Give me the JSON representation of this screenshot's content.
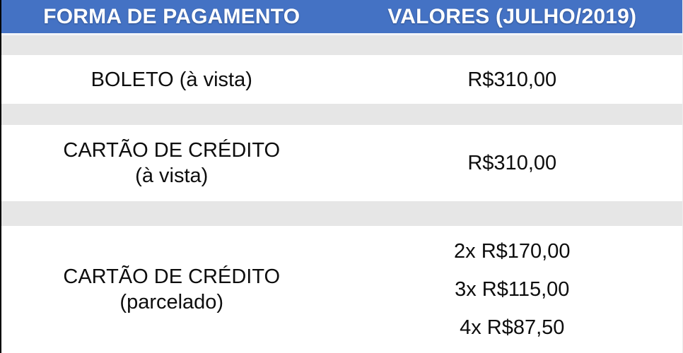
{
  "chart_data": {
    "type": "table",
    "columns": [
      "FORMA DE PAGAMENTO",
      "VALORES (JULHO/2019)"
    ],
    "rows": [
      {
        "forma_de_pagamento": "BOLETO (à vista)",
        "valores": [
          "R$310,00"
        ]
      },
      {
        "forma_de_pagamento": "CARTÃO DE CRÉDITO (à vista)",
        "valores": [
          "R$310,00"
        ]
      },
      {
        "forma_de_pagamento": "CARTÃO DE CRÉDITO (parcelado)",
        "valores": [
          "2x R$170,00",
          "3x R$115,00",
          "4x R$87,50"
        ]
      }
    ]
  },
  "display": {
    "header": {
      "payment_method": "FORMA DE PAGAMENTO",
      "values": "VALORES (JULHO/2019)"
    },
    "rows": [
      {
        "line1": "BOLETO (à vista)",
        "values": [
          "R$310,00"
        ]
      },
      {
        "line1": "CARTÃO DE CRÉDITO",
        "line2": "(à vista)",
        "values": [
          "R$310,00"
        ]
      },
      {
        "line1": "CARTÃO DE CRÉDITO",
        "line2": "(parcelado)",
        "values": [
          "2x R$170,00",
          "3x R$115,00",
          "4x R$87,50"
        ]
      }
    ]
  },
  "colors": {
    "header_bg": "#4472C4",
    "header_text": "#FFFFFF",
    "band_bg": "#E6E6E6",
    "row_bg": "#FFFFFF",
    "body_text": "#0D0D0D"
  }
}
